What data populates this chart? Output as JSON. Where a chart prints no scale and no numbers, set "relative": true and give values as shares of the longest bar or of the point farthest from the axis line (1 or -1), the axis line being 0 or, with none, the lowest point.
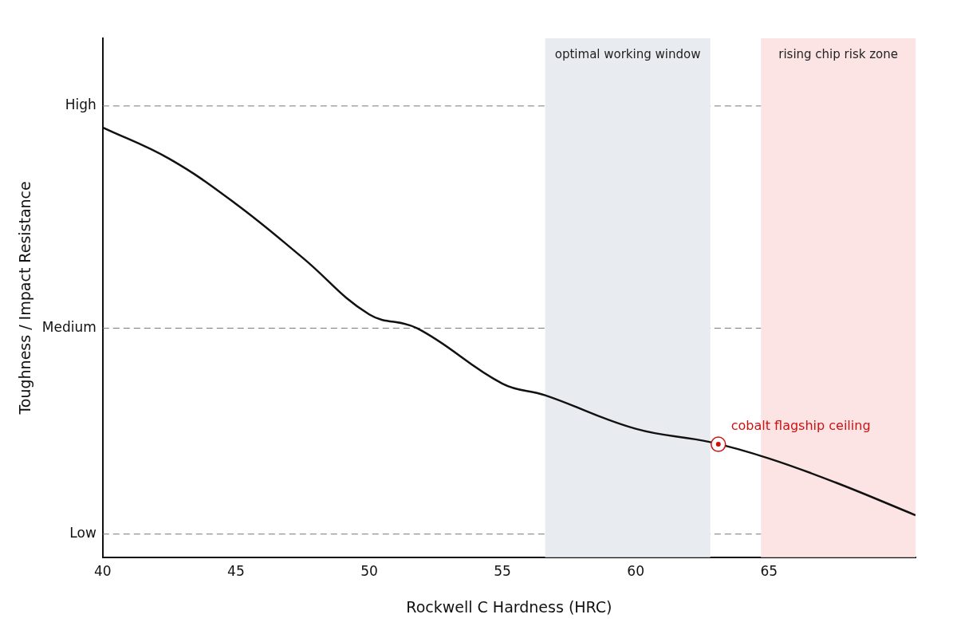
{
  "chart_data": {
    "type": "line",
    "xlabel": "Rockwell C Hardness (HRC)",
    "ylabel": "Toughness / Impact Resistance",
    "relative": true,
    "x": [
      40,
      42.5,
      45,
      47.5,
      50,
      51.8,
      55,
      56.6,
      60,
      62.8,
      65,
      67.5,
      70.5
    ],
    "series": [
      {
        "color": "#111111",
        "values": [
          1,
          0.927,
          0.822,
          0.697,
          0.565,
          0.533,
          0.404,
          0.377,
          0.299,
          0.268,
          0.23,
          0.174,
          0.098
        ]
      }
    ],
    "xlim": [
      40,
      70.5
    ],
    "xticks": [
      40,
      45,
      50,
      55,
      60,
      65
    ],
    "legend": false,
    "marker": "none",
    "line_style": "solid",
    "ref_lines": [
      {
        "axis": "y",
        "value": 1.05,
        "label": "High",
        "line_style": "dashed",
        "color": "#777777"
      },
      {
        "axis": "y",
        "value": 0.533,
        "label": "Medium",
        "line_style": "dashed",
        "color": "#777777"
      },
      {
        "axis": "y",
        "value": 0.054,
        "label": "Low",
        "line_style": "dashed",
        "color": "#777777"
      }
    ],
    "bands": [
      {
        "axis": "x",
        "from": 56.6,
        "to": 62.8,
        "label": "optimal working window",
        "color": "#e8ecf1"
      },
      {
        "axis": "x",
        "from": 64.7,
        "to": 70.5,
        "label": "rising chip risk zone",
        "color": "#fde4e4"
      }
    ],
    "annotations": [
      {
        "text": "cobalt flagship ceiling",
        "x": 63.1,
        "y": 0.263
      }
    ]
  }
}
